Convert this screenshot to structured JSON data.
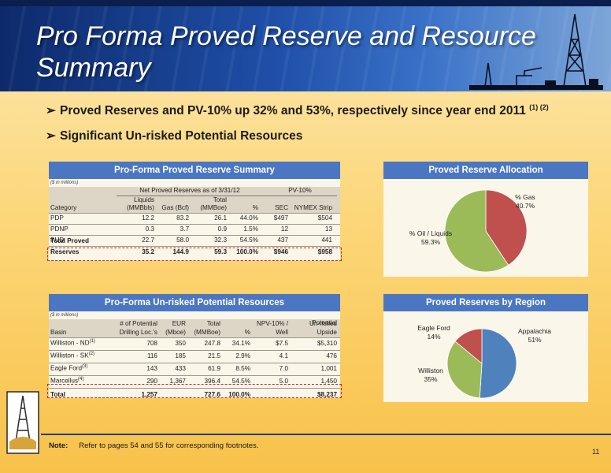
{
  "title": "Pro Forma Proved Reserve and Resource Summary",
  "bullets": [
    {
      "text": "Proved Reserves and PV-10% up 32% and 53%, respectively since year end 2011 ",
      "sup": "(1) (2)"
    },
    {
      "text": "Significant Un-risked Potential Resources",
      "sup": ""
    }
  ],
  "reserve_table": {
    "header": "Pro-Forma Proved Reserve Summary",
    "units_note": "($ in millions)",
    "group_header_1": "Net Proved Reserves as of 3/31/12",
    "group_header_2": "PV-10%",
    "columns": [
      "Category",
      "Liquids (MMBbls)",
      "Gas (Bcf)",
      "Total (MMBoe)",
      "%",
      "SEC",
      "NYMEX Strip"
    ],
    "col_top": [
      "",
      "Liquids",
      "",
      "Total",
      "",
      "",
      ""
    ],
    "col_bottom": [
      "Category",
      "(MMBbls)",
      "Gas (Bcf)",
      "(MMBoe)",
      "%",
      "SEC",
      "NYMEX Strip"
    ],
    "rows": [
      [
        "PDP",
        "12.2",
        "83.2",
        "26.1",
        "44.0%",
        "$497",
        "$504"
      ],
      [
        "PDNP",
        "0.3",
        "3.7",
        "0.9",
        "1.5%",
        "12",
        "13"
      ],
      [
        "PUD",
        "22.7",
        "58.0",
        "32.3",
        "54.5%",
        "437",
        "441"
      ]
    ],
    "total": [
      "Total Proved Reserves",
      "35.2",
      "144.9",
      "59.3",
      "100.0%",
      "$946",
      "$958"
    ]
  },
  "resource_table": {
    "header": "Pro-Forma Un-risked Potential Resources",
    "units_note": "($ in millions)",
    "col_top": [
      "",
      "# of Potential",
      "EUR",
      "Total",
      "",
      "NPV-10% /",
      "Un-risked"
    ],
    "col_bottom": [
      "Basin",
      "Drilling Loc.'s",
      "(Mboe)",
      "(MMBoe)",
      "%",
      "Well",
      "Potential Upside"
    ],
    "rows": [
      {
        "name": "Williston - ND",
        "sup": "(1)",
        "vals": [
          "708",
          "350",
          "247.8",
          "34.1%",
          "$7.5",
          "$5,310"
        ]
      },
      {
        "name": "Williston - SK",
        "sup": "(2)",
        "vals": [
          "116",
          "185",
          "21.5",
          "2.9%",
          "4.1",
          "476"
        ]
      },
      {
        "name": "Eagle Ford",
        "sup": "(3)",
        "vals": [
          "143",
          "433",
          "61.9",
          "8.5%",
          "7.0",
          "1,001"
        ]
      },
      {
        "name": "Marcellus",
        "sup": "(4)",
        "vals": [
          "290",
          "1,367",
          "396.4",
          "54.5%",
          "5.0",
          "1,450"
        ]
      }
    ],
    "total": [
      "Total",
      "1,257",
      "",
      "727.6",
      "100.0%",
      "",
      "$8,237"
    ]
  },
  "chart_data": [
    {
      "type": "pie",
      "title": "Proved Reserve Allocation",
      "categories": [
        "% Gas",
        "% Oil / Liquids"
      ],
      "values": [
        40.7,
        59.3
      ],
      "labels": [
        "40.7%",
        "59.3%"
      ],
      "colors": [
        "#c0504d",
        "#9bbb59"
      ]
    },
    {
      "type": "pie",
      "title": "Proved Reserves by Region",
      "categories": [
        "Appalachia",
        "Williston",
        "Eagle Ford"
      ],
      "values": [
        51,
        35,
        14
      ],
      "labels": [
        "51%",
        "35%",
        "14%"
      ],
      "colors": [
        "#4f81bd",
        "#9bbb59",
        "#c0504d"
      ]
    }
  ],
  "footnote": {
    "label": "Note:",
    "text": "Refer to pages 54 and 55 for corresponding footnotes."
  },
  "page_number": "11"
}
